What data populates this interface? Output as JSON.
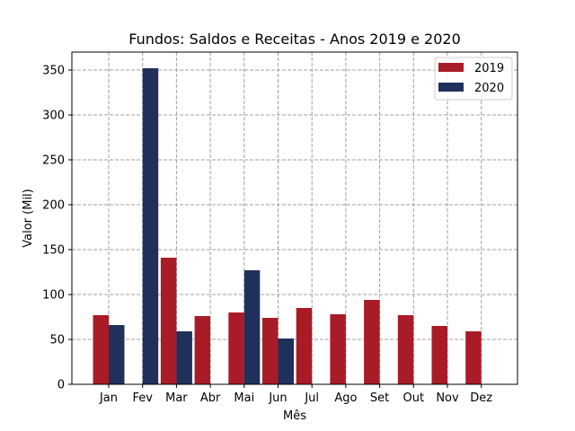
{
  "chart_data": {
    "type": "bar",
    "title": "Fundos: Saldos e Receitas - Anos 2019 e 2020",
    "xlabel": "Mês",
    "ylabel": "Valor (Mil)",
    "categories": [
      "Jan",
      "Fev",
      "Mar",
      "Abr",
      "Mai",
      "Jun",
      "Jul",
      "Ago",
      "Set",
      "Out",
      "Nov",
      "Dez"
    ],
    "series": [
      {
        "name": "2019",
        "color": "#a91c27",
        "values": [
          77,
          null,
          141,
          76,
          80,
          74,
          85,
          78,
          94,
          77,
          65,
          59
        ]
      },
      {
        "name": "2020",
        "color": "#1f305b",
        "values": [
          66,
          352,
          59,
          null,
          127,
          51,
          null,
          null,
          null,
          null,
          null,
          null
        ]
      }
    ],
    "ylim": [
      0,
      370
    ],
    "yticks": [
      0,
      50,
      100,
      150,
      200,
      250,
      300,
      350
    ],
    "grid": true,
    "legend_position": "top-right"
  }
}
